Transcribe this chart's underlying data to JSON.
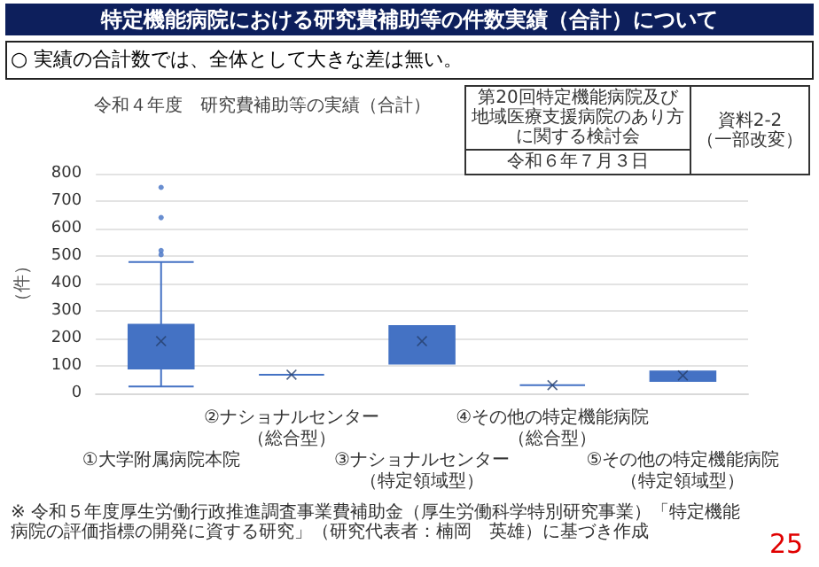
{
  "chart_data": {
    "type": "box",
    "title": "令和４年度　研究費補助等の実績（合計）",
    "ylabel": "（件）",
    "categories": [
      "①大学附属病院本院",
      "②ナショナルセンター（総合型）",
      "③ナショナルセンター（特定領域型）",
      "④その他の特定機能病院（総合型）",
      "⑤その他の特定機能病院（特定領域型）"
    ],
    "boxes": [
      {
        "low": 25,
        "q1": 90,
        "median": 140,
        "q3": 250,
        "high": 478,
        "mean": 190,
        "outliers": [
          505,
          520,
          640,
          750
        ]
      },
      {
        "low": 68,
        "q1": 68,
        "median": 68,
        "q3": 68,
        "high": 68,
        "mean": 68
      },
      {
        "low": 108,
        "q1": 108,
        "median": 200,
        "q3": 245,
        "high": 245,
        "mean": 190
      },
      {
        "low": 30,
        "q1": 30,
        "median": 30,
        "q3": 30,
        "high": 30,
        "mean": 30
      },
      {
        "low": 45,
        "q1": 45,
        "median": 65,
        "q3": 80,
        "high": 80,
        "mean": 65
      }
    ],
    "color": "#4472c4",
    "ylim": [
      0,
      800
    ],
    "yticks": [
      0,
      100,
      200,
      300,
      400,
      500,
      600,
      700,
      800
    ],
    "grid": "y",
    "annotations": [
      "特定機能病院における研究費補助等の件数実績（合計）について",
      "○ 実績の合計数では、全体として大きな差は無い。",
      "第20回特定機能病院及び地域医療支援病院のあり方に関する検討会",
      "令和６年７月３日",
      "資料2-2",
      "（一部改変）",
      "※ 令和５年度厚生労働行政推進調査事業費補助金（厚生労働科学特別研究事業）「特定機能病院の評価指標の開発に資する研究」（研究代表者：楠岡　英雄）に基づき作成",
      "25"
    ]
  }
}
